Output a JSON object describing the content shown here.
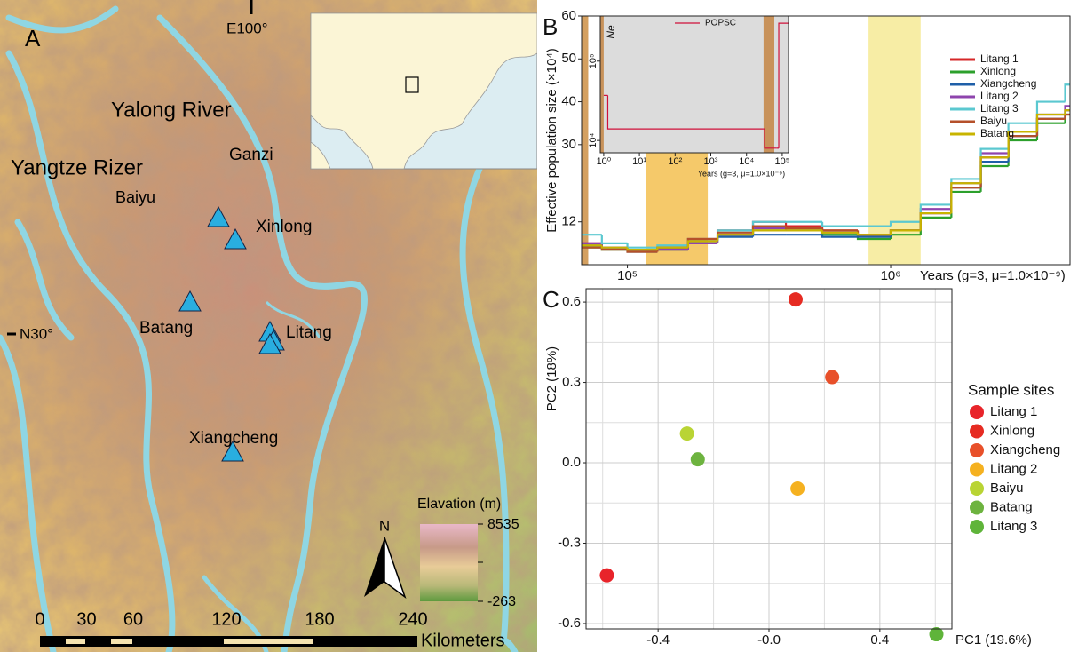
{
  "map": {
    "panel_label": "A",
    "longitude": "E100°",
    "latitude": "N30°",
    "rivers": [
      "Yalong River",
      "Yangtze Rizer"
    ],
    "places": [
      "Ganzi",
      "Baiyu",
      "Xinlong",
      "Batang",
      "Litang",
      "Xiangcheng"
    ],
    "north": "N",
    "elevation_legend": {
      "title": "Elavation (m)",
      "max": 8535,
      "min": -263
    },
    "scale_bar": {
      "ticks": [
        0,
        30,
        60,
        120,
        180,
        240
      ],
      "unit": "Kilometers"
    }
  },
  "chart_data": [
    {
      "type": "line",
      "panel_label": "B",
      "steps": true,
      "xscale": "log",
      "xlabel": "Years (g=3, μ=1.0×10⁻⁹)",
      "ylabel": "Effective population size (×10⁴)",
      "xlim": [
        67000,
        4800000
      ],
      "ylim": [
        2,
        60
      ],
      "xticks": [
        {
          "value": 100000,
          "label": "10⁵"
        },
        {
          "value": 1000000,
          "label": "10⁶"
        }
      ],
      "yticks": [
        12,
        30,
        40,
        50,
        60
      ],
      "shaded_regions": [
        {
          "xmin": 67000,
          "xmax": 71000,
          "color": "#d4a060"
        },
        {
          "xmin": 118000,
          "xmax": 202000,
          "color": "#f5c96a"
        },
        {
          "xmin": 824000,
          "xmax": 1300000,
          "color": "#f7eda5"
        }
      ],
      "x": [
        67000,
        80000,
        100000,
        130000,
        170000,
        220000,
        300000,
        400000,
        550000,
        750000,
        1000000,
        1300000,
        1700000,
        2200000,
        2800000,
        3600000,
        4600000
      ],
      "series": [
        {
          "name": "Litang 1",
          "color": "#d62728",
          "values": [
            7,
            6,
            5.5,
            6,
            8,
            10,
            12,
            11,
            10,
            9,
            10,
            14,
            20,
            27,
            32,
            36,
            38
          ]
        },
        {
          "name": "Xinlong",
          "color": "#2ca02c",
          "values": [
            6,
            5.5,
            5,
            5.5,
            7,
            9,
            10,
            10,
            9,
            8,
            9,
            13,
            19,
            25,
            31,
            35,
            37
          ]
        },
        {
          "name": "Xiangcheng",
          "color": "#1f5fa8",
          "values": [
            6.5,
            6,
            5.5,
            6,
            7.5,
            8.5,
            9,
            9,
            8.5,
            8.5,
            10,
            14,
            20,
            26,
            32,
            36,
            38
          ]
        },
        {
          "name": "Litang 2",
          "color": "#8e44ad",
          "values": [
            7,
            6,
            5,
            5.5,
            7,
            9,
            10.5,
            10,
            9.5,
            9,
            10,
            15,
            21,
            28,
            33,
            37,
            39
          ]
        },
        {
          "name": "Litang 3",
          "color": "#5bc8d0",
          "values": [
            9,
            7,
            6,
            6.5,
            8,
            10,
            12,
            12,
            11,
            11,
            12,
            16,
            22,
            29,
            35,
            40,
            44
          ]
        },
        {
          "name": "Baiyu",
          "color": "#b5502a",
          "values": [
            6,
            5.5,
            5,
            6,
            8,
            9.5,
            11,
            10.5,
            10,
            9,
            10,
            14,
            20,
            27,
            32,
            36,
            37
          ]
        },
        {
          "name": "Batang",
          "color": "#c8b400",
          "values": [
            6.5,
            6,
            5.5,
            6,
            7.5,
            9,
            10,
            10,
            9.5,
            9,
            10,
            14,
            21,
            27,
            33,
            37,
            38
          ]
        }
      ]
    },
    {
      "type": "line",
      "steps": true,
      "xscale": "log",
      "yscale": "log",
      "background": "#dcdcdc",
      "xlabel": "Years (g=3, μ=1.0×10⁻⁹)",
      "ylabel": "Ne",
      "xlim": [
        0.8,
        150000
      ],
      "ylim": [
        7000,
        370000
      ],
      "xticks": [
        {
          "value": 1,
          "label": "10⁰"
        },
        {
          "value": 10,
          "label": "10¹"
        },
        {
          "value": 100,
          "label": "10²"
        },
        {
          "value": 1000,
          "label": "10³"
        },
        {
          "value": 10000,
          "label": "10⁴"
        },
        {
          "value": 100000,
          "label": "10⁵"
        }
      ],
      "yticks": [
        {
          "value": 10000,
          "label": "10⁴"
        },
        {
          "value": 100000,
          "label": "10⁵"
        }
      ],
      "shaded_regions": [
        {
          "xmin": 0.8,
          "xmax": 1.0,
          "color": "#c8925a"
        },
        {
          "xmin": 30000,
          "xmax": 60000,
          "color": "#c8925a"
        }
      ],
      "x": [
        1,
        1.3,
        30000,
        32000,
        70000,
        80000
      ],
      "series": [
        {
          "name": "POPSC",
          "color": "#d0103a",
          "values": [
            37000,
            14000,
            14000,
            8000,
            8000,
            300000
          ]
        }
      ]
    },
    {
      "type": "scatter",
      "panel_label": "C",
      "xlabel": "PC1 (19.6%)",
      "ylabel": "PC2 (18%)",
      "legend_title": "Sample sites",
      "grid": true,
      "xlim": [
        -0.66,
        0.66
      ],
      "ylim": [
        -0.62,
        0.65
      ],
      "xticks": [
        -0.4,
        {
          "value": 0,
          "label": "-0.0"
        },
        0.4
      ],
      "yticks": [
        -0.6,
        -0.3,
        {
          "value": 0,
          "label": "0.0"
        },
        0.3,
        0.6
      ],
      "x_minor_grid": [
        -0.6,
        -0.2,
        0.2,
        0.6
      ],
      "y_minor_grid": [
        -0.45,
        -0.15,
        0.15,
        0.45
      ],
      "series": [
        {
          "name": "Litang 1",
          "color": "#e8242a",
          "x": [
            -0.585
          ],
          "values": [
            -0.42
          ]
        },
        {
          "name": "Xinlong",
          "color": "#e62b22",
          "x": [
            0.096
          ],
          "values": [
            0.61
          ]
        },
        {
          "name": "Xiangcheng",
          "color": "#e8502a",
          "x": [
            0.228
          ],
          "values": [
            0.32
          ]
        },
        {
          "name": "Litang 2",
          "color": "#f5b120",
          "x": [
            0.103
          ],
          "values": [
            -0.096
          ]
        },
        {
          "name": "Baiyu",
          "color": "#b9d434",
          "x": [
            -0.296
          ],
          "values": [
            0.109
          ]
        },
        {
          "name": "Batang",
          "color": "#6db33f",
          "x": [
            -0.257
          ],
          "values": [
            0.013
          ]
        },
        {
          "name": "Litang 3",
          "color": "#5fb43a",
          "x": [
            0.604
          ],
          "values": [
            -0.64
          ]
        }
      ]
    }
  ]
}
